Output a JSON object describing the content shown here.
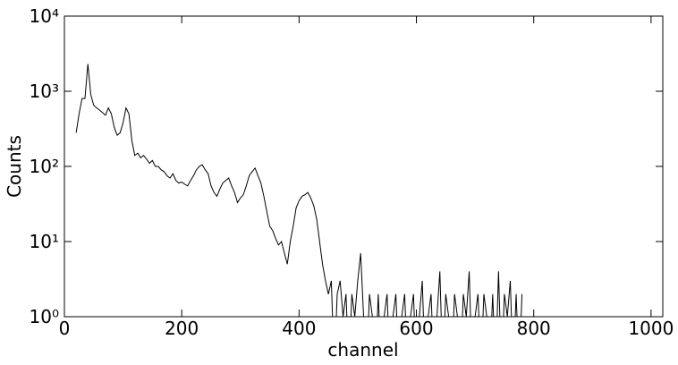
{
  "chart_data": {
    "type": "line",
    "xlabel": "channel",
    "ylabel": "Counts",
    "yscale": "log",
    "color": "#000000",
    "xlim": [
      0,
      1020
    ],
    "xticks": [
      0,
      200,
      400,
      600,
      800,
      1000
    ],
    "ylim": [
      1,
      10000
    ],
    "yticks": [
      {
        "value": 1,
        "label": "10⁰"
      },
      {
        "value": 10,
        "label": "10¹"
      },
      {
        "value": 100,
        "label": "10²"
      },
      {
        "value": 1000,
        "label": "10³"
      },
      {
        "value": 10000,
        "label": "10⁴"
      }
    ],
    "x": [
      20,
      25,
      30,
      35,
      40,
      45,
      50,
      55,
      60,
      65,
      70,
      75,
      80,
      85,
      90,
      95,
      100,
      105,
      110,
      115,
      120,
      125,
      130,
      135,
      140,
      145,
      150,
      155,
      160,
      165,
      170,
      175,
      180,
      185,
      190,
      195,
      200,
      205,
      210,
      215,
      220,
      225,
      230,
      235,
      240,
      245,
      250,
      255,
      260,
      265,
      270,
      275,
      280,
      285,
      290,
      295,
      300,
      305,
      310,
      315,
      320,
      325,
      330,
      335,
      340,
      345,
      350,
      355,
      360,
      365,
      370,
      375,
      380,
      385,
      390,
      395,
      400,
      405,
      410,
      415,
      420,
      425,
      430,
      435,
      440,
      445,
      450,
      455,
      460,
      465,
      470,
      475,
      480,
      485,
      490,
      495,
      500,
      505,
      510,
      515,
      520,
      525,
      530,
      535,
      540,
      545,
      550,
      555,
      560,
      565,
      570,
      575,
      580,
      585,
      590,
      595,
      600,
      605,
      610,
      615,
      620,
      625,
      630,
      635,
      640,
      645,
      650,
      655,
      660,
      665,
      670,
      675,
      680,
      685,
      690,
      695,
      700,
      705,
      710,
      715,
      720,
      725,
      730,
      735,
      740,
      745,
      750,
      755,
      760,
      765,
      770,
      775,
      780
    ],
    "values": [
      280,
      500,
      800,
      800,
      2300,
      900,
      650,
      600,
      560,
      520,
      480,
      600,
      500,
      330,
      260,
      280,
      380,
      600,
      500,
      220,
      140,
      150,
      130,
      140,
      125,
      110,
      120,
      100,
      100,
      90,
      85,
      75,
      70,
      80,
      65,
      60,
      62,
      58,
      55,
      65,
      75,
      90,
      100,
      105,
      90,
      80,
      55,
      45,
      40,
      50,
      60,
      65,
      70,
      55,
      45,
      33,
      38,
      42,
      55,
      75,
      85,
      95,
      75,
      60,
      40,
      25,
      16,
      14,
      11,
      9,
      10,
      7,
      5,
      10,
      16,
      28,
      35,
      40,
      42,
      45,
      38,
      30,
      20,
      10,
      5,
      3,
      2,
      3,
      0,
      2,
      3,
      1,
      2,
      0,
      2,
      1,
      3,
      7,
      1,
      0,
      2,
      1,
      0,
      2,
      0,
      1,
      2,
      0,
      1,
      2,
      0,
      1,
      2,
      0,
      1,
      2,
      0,
      1,
      3,
      0,
      1,
      2,
      0,
      1,
      4,
      0,
      2,
      1,
      0,
      2,
      1,
      0,
      2,
      1,
      4,
      0,
      1,
      2,
      0,
      2,
      1,
      0,
      2,
      0,
      4,
      0,
      2,
      1,
      3,
      0,
      2,
      0,
      2
    ]
  }
}
